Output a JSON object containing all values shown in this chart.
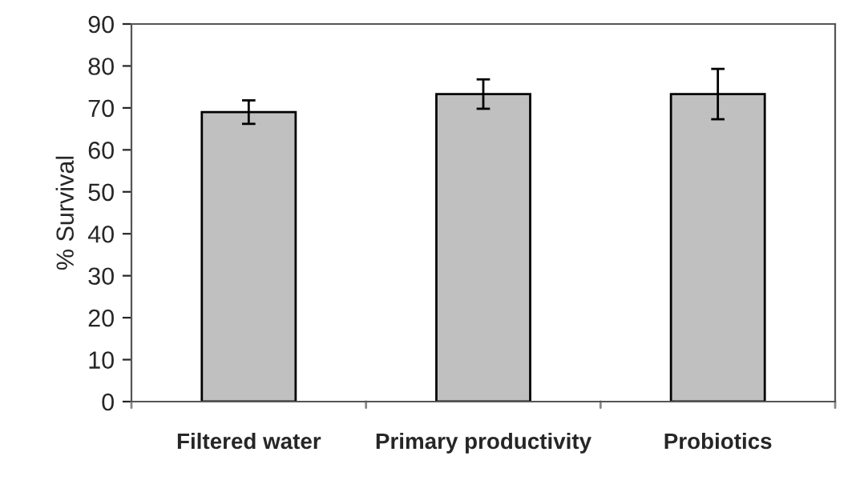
{
  "chart_data": {
    "type": "bar",
    "ylabel": "% Survival",
    "categories": [
      "Filtered water",
      "Primary productivity",
      "Probiotics"
    ],
    "values": [
      69,
      73.3,
      73.3
    ],
    "errors": [
      2.8,
      3.5,
      6
    ],
    "color": "#c0c0c0",
    "ylim": [
      0,
      90
    ],
    "yticks": [
      0,
      10,
      20,
      30,
      40,
      50,
      60,
      70,
      80,
      90
    ],
    "grid": false
  }
}
